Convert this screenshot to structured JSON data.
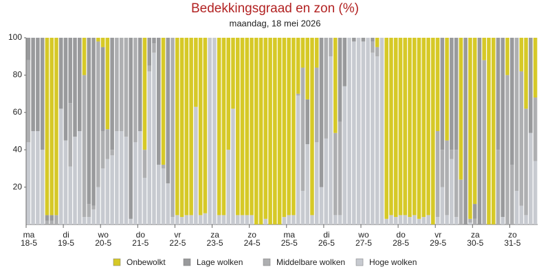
{
  "chart_data": {
    "type": "stacked-bar",
    "title": "Bedekkingsgraad en zon (%)",
    "subtitle": "maandag, 18 mei 2026",
    "ylim": [
      0,
      100
    ],
    "yticks": [
      20,
      40,
      60,
      80,
      100
    ],
    "categories": [
      [
        "ma",
        "18-5"
      ],
      null,
      null,
      null,
      null,
      null,
      null,
      null,
      [
        "di",
        "19-5"
      ],
      null,
      null,
      null,
      null,
      null,
      null,
      null,
      [
        "wo",
        "20-5"
      ],
      null,
      null,
      null,
      null,
      null,
      null,
      null,
      [
        "do",
        "21-5"
      ],
      null,
      null,
      null,
      null,
      null,
      null,
      null,
      [
        "vr",
        "22-5"
      ],
      null,
      null,
      null,
      null,
      null,
      null,
      null,
      [
        "za",
        "23-5"
      ],
      null,
      null,
      null,
      null,
      null,
      null,
      null,
      [
        "zo",
        "24-5"
      ],
      null,
      null,
      null,
      null,
      null,
      null,
      null,
      [
        "ma",
        "25-5"
      ],
      null,
      null,
      null,
      null,
      null,
      null,
      null,
      [
        "di",
        "26-5"
      ],
      null,
      null,
      null,
      null,
      null,
      null,
      null,
      [
        "wo",
        "27-5"
      ],
      null,
      null,
      null,
      null,
      null,
      null,
      null,
      [
        "do",
        "28-5"
      ],
      null,
      null,
      null,
      null,
      null,
      null,
      null,
      [
        "vr",
        "29-5"
      ],
      null,
      null,
      null,
      null,
      null,
      null,
      null,
      [
        "za",
        "30-5"
      ],
      null,
      null,
      null,
      null,
      null,
      null,
      null,
      [
        "zo",
        "31-5"
      ],
      null,
      null,
      null,
      null,
      null
    ],
    "series": [
      {
        "name": "Onbewolkt",
        "color": "#d6c927",
        "values": [
          0,
          0,
          0,
          0,
          95,
          95,
          95,
          0,
          0,
          0,
          0,
          0,
          20,
          0,
          0,
          2,
          5,
          49,
          0,
          0,
          0,
          0,
          0,
          0,
          0,
          60,
          0,
          0,
          0,
          68,
          0,
          0,
          95,
          96,
          95,
          95,
          37,
          95,
          94,
          0,
          0,
          95,
          95,
          60,
          38,
          95,
          95,
          95,
          95,
          100,
          100,
          97,
          100,
          100,
          100,
          96,
          95,
          95,
          30,
          16,
          33,
          95,
          16,
          0,
          0,
          0,
          51,
          0,
          0,
          0,
          0,
          0,
          0,
          0,
          0,
          5,
          0,
          97,
          95,
          96,
          95,
          95,
          96,
          95,
          97,
          96,
          95,
          100,
          50,
          0,
          55,
          0,
          0,
          76,
          0,
          97,
          89,
          0,
          12,
          100,
          100,
          0,
          0,
          20,
          0,
          0,
          18,
          38,
          0,
          32
        ]
      },
      {
        "name": "Lage wolken",
        "color": "#999a9c",
        "values": [
          12,
          50,
          50,
          60,
          3,
          3,
          0,
          38,
          55,
          35,
          53,
          50,
          0,
          89,
          90,
          0,
          45,
          0,
          60,
          0,
          0,
          0,
          97,
          0,
          50,
          0,
          15,
          3,
          68,
          0,
          78,
          0,
          0,
          0,
          0,
          0,
          0,
          0,
          0,
          0,
          0,
          0,
          0,
          0,
          0,
          0,
          0,
          0,
          0,
          0,
          0,
          0,
          0,
          0,
          0,
          0,
          0,
          0,
          0,
          0,
          24,
          0,
          0,
          80,
          0,
          0,
          0,
          45,
          26,
          0,
          2,
          0,
          2,
          0,
          2,
          0,
          0,
          0,
          0,
          0,
          0,
          0,
          0,
          0,
          0,
          0,
          0,
          0,
          0,
          60,
          0,
          60,
          60,
          0,
          100,
          0,
          8,
          100,
          0,
          0,
          0,
          60,
          96,
          0,
          68,
          0,
          0,
          0,
          51,
          0
        ]
      },
      {
        "name": "Middelbare wolken",
        "color": "#aeafb1",
        "values": [
          44,
          0,
          0,
          0,
          2,
          2,
          5,
          0,
          0,
          34,
          0,
          0,
          76,
          7,
          2,
          78,
          20,
          16,
          3,
          50,
          50,
          53,
          0,
          56,
          0,
          15,
          3,
          5,
          0,
          2,
          0,
          96,
          0,
          0,
          0,
          0,
          0,
          0,
          0,
          0,
          0,
          0,
          0,
          0,
          0,
          0,
          0,
          0,
          0,
          0,
          0,
          0,
          0,
          0,
          0,
          0,
          0,
          0,
          1,
          66,
          0,
          0,
          40,
          0,
          54,
          10,
          44,
          50,
          0,
          0,
          0,
          0,
          0,
          0,
          6,
          5,
          0,
          0,
          0,
          0,
          0,
          0,
          0,
          0,
          0,
          0,
          0,
          0,
          46,
          20,
          40,
          5,
          36,
          24,
          0,
          2,
          3,
          0,
          88,
          0,
          0,
          40,
          0,
          80,
          32,
          82,
          72,
          57,
          0,
          34
        ]
      },
      {
        "name": "Hoge wolken",
        "color": "#c7cad0",
        "values": [
          44,
          50,
          50,
          40,
          0,
          0,
          0,
          62,
          45,
          31,
          47,
          50,
          4,
          4,
          8,
          20,
          30,
          35,
          37,
          50,
          50,
          47,
          3,
          44,
          50,
          25,
          82,
          92,
          32,
          30,
          22,
          4,
          5,
          4,
          5,
          5,
          63,
          5,
          6,
          100,
          100,
          5,
          5,
          40,
          62,
          5,
          5,
          5,
          5,
          0,
          0,
          3,
          0,
          0,
          0,
          4,
          5,
          5,
          69,
          18,
          43,
          5,
          44,
          20,
          46,
          90,
          5,
          5,
          74,
          100,
          98,
          100,
          98,
          100,
          92,
          90,
          100,
          3,
          5,
          4,
          5,
          5,
          4,
          5,
          3,
          4,
          5,
          0,
          4,
          20,
          5,
          35,
          4,
          0,
          0,
          1,
          0,
          0,
          0,
          0,
          0,
          0,
          4,
          0,
          0,
          18,
          10,
          5,
          49,
          34
        ]
      }
    ]
  }
}
